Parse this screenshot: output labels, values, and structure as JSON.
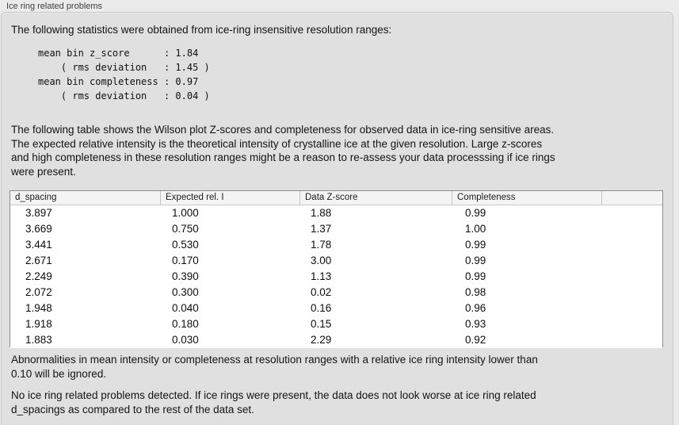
{
  "panel": {
    "title": "Ice ring related problems"
  },
  "intro": "The following statistics were obtained from ice-ring insensitive resolution ranges:",
  "stats_block": {
    "lines": [
      "mean bin z_score      : 1.84",
      "    ( rms deviation   : 1.45 )",
      "mean bin completeness : 0.97",
      "    ( rms deviation   : 0.04 )"
    ]
  },
  "description_lines": [
    "The following table shows the Wilson plot Z-scores and completeness for observed data in ice-ring sensitive areas.",
    "The expected relative intensity is the theoretical intensity of crystalline ice at the given resolution. Large z-scores",
    "and high completeness in these resolution ranges might be a reason to re-assess your data processsing if ice rings",
    "were present."
  ],
  "table": {
    "columns": [
      "d_spacing",
      "Expected rel. I",
      "Data Z-score",
      "Completeness",
      ""
    ],
    "rows": [
      [
        "3.897",
        "1.000",
        "1.88",
        "0.99"
      ],
      [
        "3.669",
        "0.750",
        "1.37",
        "1.00"
      ],
      [
        "3.441",
        "0.530",
        "1.78",
        "0.99"
      ],
      [
        "2.671",
        "0.170",
        "3.00",
        "0.99"
      ],
      [
        "2.249",
        "0.390",
        "1.13",
        "0.99"
      ],
      [
        "2.072",
        "0.300",
        "0.02",
        "0.98"
      ],
      [
        "1.948",
        "0.040",
        "0.16",
        "0.96"
      ],
      [
        "1.918",
        "0.180",
        "0.15",
        "0.93"
      ],
      [
        "1.883",
        "0.030",
        "2.29",
        "0.92"
      ]
    ]
  },
  "note_lines": [
    "Abnormalities in mean intensity or completeness at resolution ranges with a relative ice ring intensity lower than",
    "0.10 will be ignored."
  ],
  "conclusion_lines": [
    "No ice ring related problems detected. If ice rings were present, the data does not look worse at ice ring related",
    "d_spacings as compared to the rest of the data set."
  ],
  "colors": {
    "outer_background": "#ebebeb",
    "panel_background": "#e0e0e0",
    "panel_border": "#c7c7c7",
    "table_border": "#8c8c8c",
    "table_header_background": "#f4f4f4",
    "text": "#111111"
  }
}
